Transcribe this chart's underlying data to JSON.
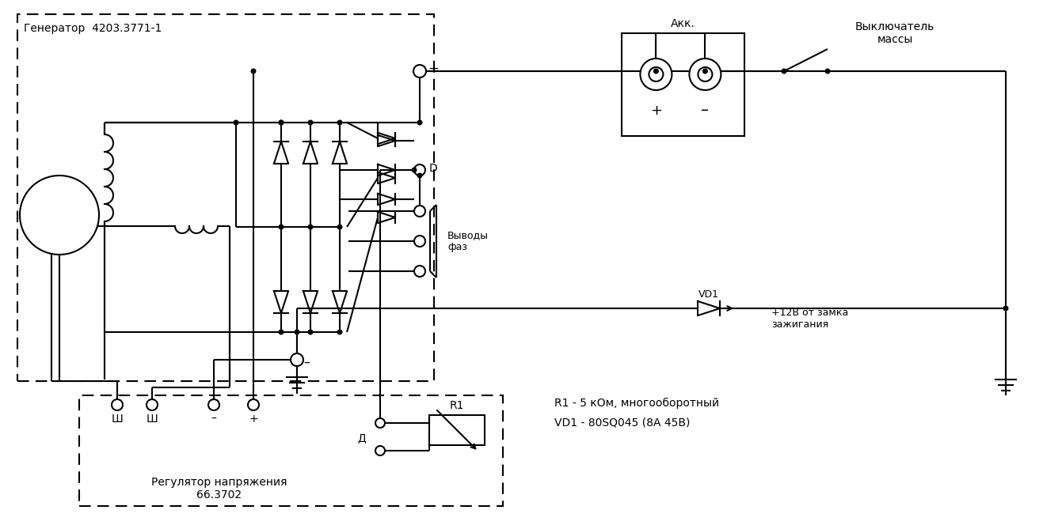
{
  "background_color": "#ffffff",
  "line_color": "#000000",
  "lw": 1.5,
  "generator_label": "Генератор  4203.3771-1",
  "regulator_label": "Регулятор напряжения\n66.3702",
  "akk_label": "Акк.",
  "switch_label": "Выключатель\nмассы",
  "vyvody_label": "Выводы\nфаз",
  "vd1_label": "VD1",
  "r1_label": "R1",
  "d_label": "Д",
  "plus_label": "+",
  "minus_label": "–",
  "D_terminal_label": "D",
  "sh_label": "Ш",
  "r1_desc": "R1 - 5 кОм, многооборотный",
  "vd1_desc": "VD1 - 80SQ045 (8А 45В)",
  "plus12_label": "+12В от замка\nзажигания"
}
